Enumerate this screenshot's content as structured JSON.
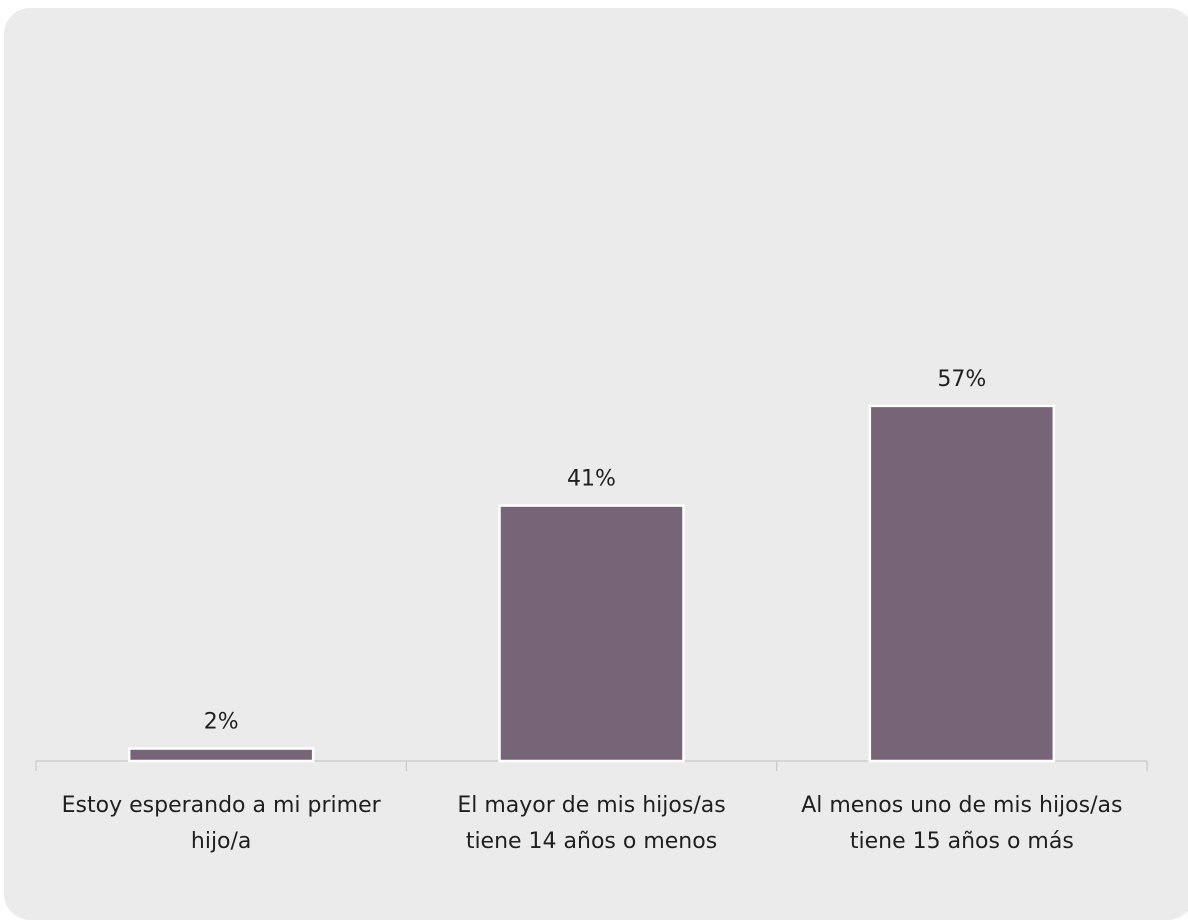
{
  "chart_data": {
    "type": "bar",
    "categories": [
      [
        "Estoy esperando a mi primer",
        "hijo/a"
      ],
      [
        "El mayor de mis hijos/as",
        "tiene 14 años o menos"
      ],
      [
        "Al menos uno de mis hijos/as",
        "tiene 15 años o más"
      ]
    ],
    "values": [
      2,
      41,
      57
    ],
    "value_labels": [
      "2%",
      "41%",
      "57%"
    ],
    "title": "",
    "xlabel": "",
    "ylabel": "",
    "ylim": [
      0,
      100
    ],
    "grid": false,
    "legend": "none",
    "colors": {
      "bar": "#756577",
      "bar_stroke": "#ffffff",
      "background": "#ebebeb",
      "axis": "#c8c8c8"
    }
  }
}
